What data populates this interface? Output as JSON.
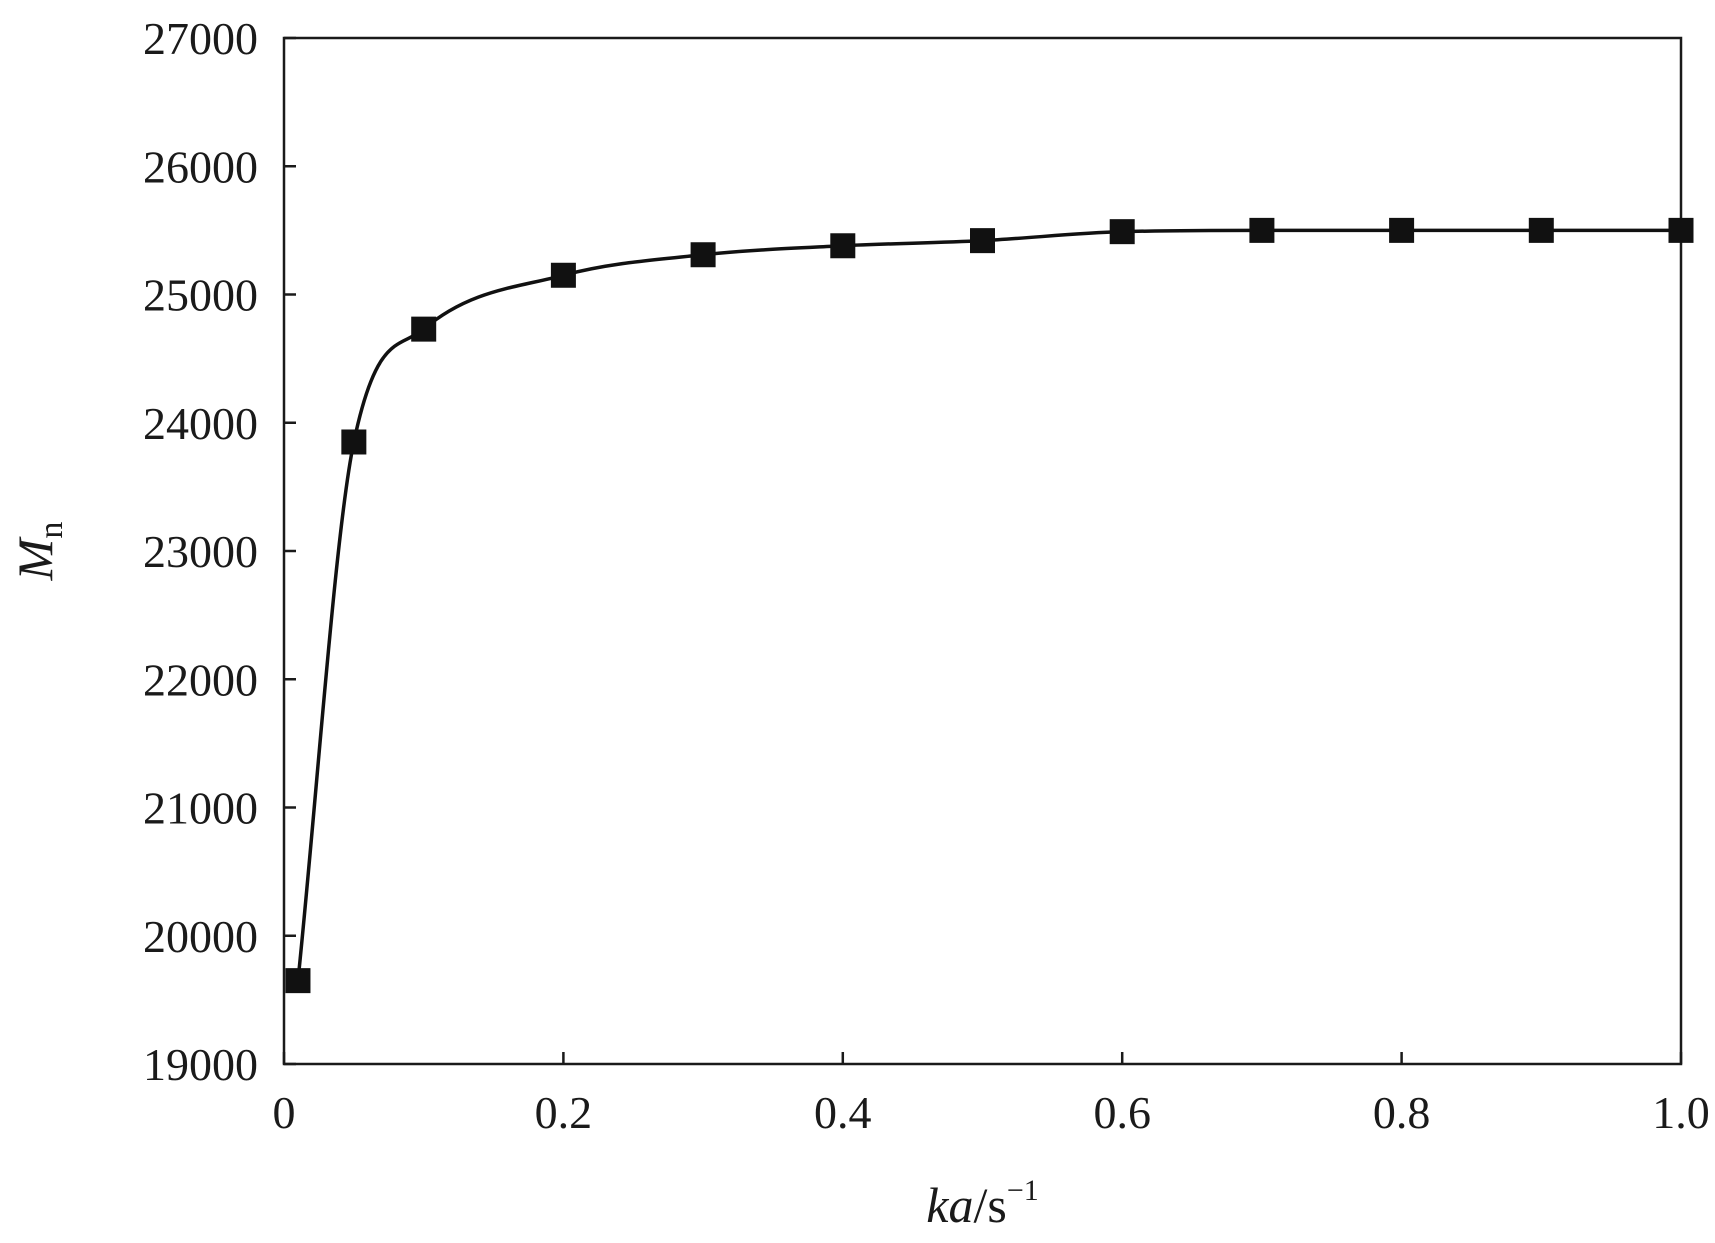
{
  "chart_data": {
    "type": "line",
    "x": [
      0.01,
      0.05,
      0.1,
      0.2,
      0.3,
      0.4,
      0.5,
      0.6,
      0.7,
      0.8,
      0.9,
      1.0
    ],
    "series": [
      {
        "values": [
          19650,
          23850,
          24730,
          25150,
          25310,
          25380,
          25420,
          25490,
          25500,
          25500,
          25500,
          25500
        ],
        "marker": "square",
        "color": "#111111"
      }
    ],
    "xlim": [
      0,
      1.0
    ],
    "ylim": [
      19000,
      27000
    ],
    "x_ticks": [
      0,
      0.2,
      0.4,
      0.6,
      0.8,
      1.0
    ],
    "x_tick_labels": [
      "0",
      "0.2",
      "0.4",
      "0.6",
      "0.8",
      "1.0"
    ],
    "y_ticks": [
      19000,
      20000,
      21000,
      22000,
      23000,
      24000,
      25000,
      26000,
      27000
    ],
    "y_tick_labels": [
      "19000",
      "20000",
      "21000",
      "22000",
      "23000",
      "24000",
      "25000",
      "26000",
      "27000"
    ],
    "xlabel": {
      "italic": "ka",
      "plain": "/s",
      "sup": "−1"
    },
    "ylabel": {
      "italic": "M",
      "sub": "n"
    },
    "grid": false,
    "legend": "none"
  }
}
